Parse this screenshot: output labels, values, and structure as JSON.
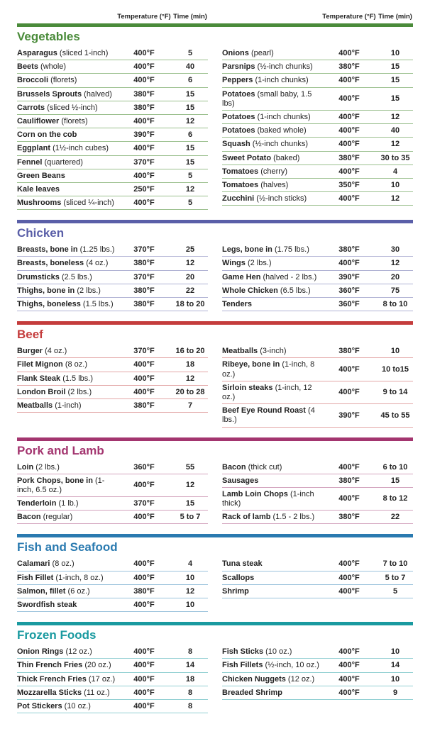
{
  "headers": {
    "temp": "Temperature (°F)",
    "time": "Time (min)"
  },
  "sections": [
    {
      "title": "Vegetables",
      "title_color": "#4a8b3a",
      "bar_color": "#4a8b3a",
      "row_border": "#9bc08e",
      "left": [
        {
          "name": "Asparagus",
          "det": " (sliced 1-inch)",
          "temp": "400°F",
          "time": "5"
        },
        {
          "name": "Beets",
          "det": " (whole)",
          "temp": "400°F",
          "time": "40"
        },
        {
          "name": "Broccoli",
          "det": " (florets)",
          "temp": "400°F",
          "time": "6"
        },
        {
          "name": "Brussels Sprouts",
          "det": " (halved)",
          "temp": "380°F",
          "time": "15"
        },
        {
          "name": "Carrots",
          "det": " (sliced ½-inch)",
          "temp": "380°F",
          "time": "15"
        },
        {
          "name": "Cauliflower",
          "det": " (florets)",
          "temp": "400°F",
          "time": "12"
        },
        {
          "name": "Corn on the cob",
          "det": "",
          "temp": "390°F",
          "time": "6"
        },
        {
          "name": "Eggplant",
          "det": " (1½-inch cubes)",
          "temp": "400°F",
          "time": "15"
        },
        {
          "name": "Fennel",
          "det": " (quartered)",
          "temp": "370°F",
          "time": "15"
        },
        {
          "name": "Green Beans",
          "det": "",
          "temp": "400°F",
          "time": "5"
        },
        {
          "name": "Kale leaves",
          "det": "",
          "temp": "250°F",
          "time": "12"
        },
        {
          "name": "Mushrooms",
          "det": " (sliced ¼-inch)",
          "temp": "400°F",
          "time": "5"
        }
      ],
      "right": [
        {
          "name": "Onions",
          "det": " (pearl)",
          "temp": "400°F",
          "time": "10"
        },
        {
          "name": "Parsnips",
          "det": " (½-inch chunks)",
          "temp": "380°F",
          "time": "15"
        },
        {
          "name": "Peppers",
          "det": " (1-inch chunks)",
          "temp": "400°F",
          "time": "15"
        },
        {
          "name": "Potatoes",
          "det": " (small baby, 1.5 lbs)",
          "temp": "400°F",
          "time": "15"
        },
        {
          "name": "Potatoes",
          "det": " (1-inch chunks)",
          "temp": "400°F",
          "time": "12"
        },
        {
          "name": "Potatoes",
          "det": " (baked whole)",
          "temp": "400°F",
          "time": "40"
        },
        {
          "name": "Squash",
          "det": " (½-inch chunks)",
          "temp": "400°F",
          "time": "12"
        },
        {
          "name": "Sweet Potato",
          "det": " (baked)",
          "temp": "380°F",
          "time": "30 to 35"
        },
        {
          "name": "Tomatoes",
          "det": " (cherry)",
          "temp": "400°F",
          "time": "4"
        },
        {
          "name": "Tomatoes",
          "det": " (halves)",
          "temp": "350°F",
          "time": "10"
        },
        {
          "name": "Zucchini",
          "det": " (½-inch sticks)",
          "temp": "400°F",
          "time": "12"
        }
      ]
    },
    {
      "title": "Chicken",
      "title_color": "#5a5fa8",
      "bar_color": "#5a5fa8",
      "row_border": "#b0b2d4",
      "left": [
        {
          "name": "Breasts, bone in",
          "det": " (1.25 lbs.)",
          "temp": "370°F",
          "time": "25"
        },
        {
          "name": "Breasts, boneless",
          "det": "  (4 oz.)",
          "temp": "380°F",
          "time": "12"
        },
        {
          "name": "Drumsticks",
          "det": " (2.5 lbs.)",
          "temp": "370°F",
          "time": "20"
        },
        {
          "name": "Thighs, bone in",
          "det": "  (2 lbs.)",
          "temp": "380°F",
          "time": "22"
        },
        {
          "name": "Thighs, boneless",
          "det": " (1.5 lbs.)",
          "temp": "380°F",
          "time": "18 to 20"
        }
      ],
      "right": [
        {
          "name": "Legs, bone in",
          "det": "  (1.75 lbs.)",
          "temp": "380°F",
          "time": "30"
        },
        {
          "name": "Wings",
          "det": "  (2 lbs.)",
          "temp": "400°F",
          "time": "12"
        },
        {
          "name": "Game Hen",
          "det": " (halved - 2 lbs.)",
          "temp": "390°F",
          "time": "20"
        },
        {
          "name": "Whole Chicken",
          "det": " (6.5 lbs.)",
          "temp": "360°F",
          "time": "75"
        },
        {
          "name": "Tenders",
          "det": "",
          "temp": "360°F",
          "time": "8 to 10"
        }
      ]
    },
    {
      "title": "Beef",
      "title_color": "#c43c3c",
      "bar_color": "#c43c3c",
      "row_border": "#e3a7a7",
      "left": [
        {
          "name": "Burger",
          "det": "  (4 oz.)",
          "temp": "370°F",
          "time": "16 to 20"
        },
        {
          "name": "Filet Mignon",
          "det": " (8 oz.)",
          "temp": "400°F",
          "time": "18"
        },
        {
          "name": "Flank Steak",
          "det": "  (1.5 lbs.)",
          "temp": "400°F",
          "time": "12"
        },
        {
          "name": "London Broil",
          "det": "  (2 lbs.)",
          "temp": "400°F",
          "time": "20 to 28"
        },
        {
          "name": "Meatballs",
          "det": " (1-inch)",
          "temp": "380°F",
          "time": "7"
        }
      ],
      "right": [
        {
          "name": "Meatballs",
          "det": " (3-inch)",
          "temp": "380°F",
          "time": "10"
        },
        {
          "name": "Ribeye, bone in",
          "det": " (1-inch, 8 oz.)",
          "temp": "400°F",
          "time": "10 to15"
        },
        {
          "name": "Sirloin steaks",
          "det": " (1-inch, 12 oz.)",
          "temp": "400°F",
          "time": "9 to 14"
        },
        {
          "name": "Beef Eye Round Roast",
          "det": " (4 lbs.)",
          "temp": "390°F",
          "time": "45 to 55"
        }
      ]
    },
    {
      "title": "Pork and Lamb",
      "title_color": "#a3356f",
      "bar_color": "#a3356f",
      "row_border": "#d4a5bf",
      "left": [
        {
          "name": "Loin",
          "det": " (2 lbs.)",
          "temp": "360°F",
          "time": "55"
        },
        {
          "name": "Pork Chops, bone in",
          "det": " (1-inch, 6.5 oz.)",
          "temp": "400°F",
          "time": "12"
        },
        {
          "name": "Tenderloin",
          "det": " (1 lb.)",
          "temp": "370°F",
          "time": "15"
        },
        {
          "name": "Bacon",
          "det": " (regular)",
          "temp": "400°F",
          "time": "5 to 7"
        }
      ],
      "right": [
        {
          "name": "Bacon",
          "det": " (thick cut)",
          "temp": "400°F",
          "time": "6 to 10"
        },
        {
          "name": "Sausages",
          "det": "",
          "temp": "380°F",
          "time": "15"
        },
        {
          "name": "Lamb Loin Chops",
          "det": " (1-inch thick)",
          "temp": "400°F",
          "time": "8 to 12"
        },
        {
          "name": "Rack of lamb",
          "det": " (1.5 - 2 lbs.)",
          "temp": "380°F",
          "time": "22"
        }
      ]
    },
    {
      "title": "Fish and Seafood",
      "title_color": "#2a7ab0",
      "bar_color": "#2a7ab0",
      "row_border": "#9cc3dc",
      "left": [
        {
          "name": "Calamari",
          "det": " (8 oz.)",
          "temp": "400°F",
          "time": "4"
        },
        {
          "name": "Fish Fillet",
          "det": " (1-inch, 8 oz.)",
          "temp": "400°F",
          "time": "10"
        },
        {
          "name": "Salmon, fillet",
          "det": "  (6 oz.)",
          "temp": "380°F",
          "time": "12"
        },
        {
          "name": "Swordfish steak",
          "det": "",
          "temp": "400°F",
          "time": "10"
        }
      ],
      "right": [
        {
          "name": "Tuna steak",
          "det": "",
          "temp": "400°F",
          "time": "7 to 10"
        },
        {
          "name": "Scallops",
          "det": "",
          "temp": "400°F",
          "time": "5 to 7"
        },
        {
          "name": "Shrimp",
          "det": "",
          "temp": "400°F",
          "time": "5"
        }
      ]
    },
    {
      "title": "Frozen Foods",
      "title_color": "#1a9aa0",
      "bar_color": "#1a9aa0",
      "row_border": "#93d0d3",
      "left": [
        {
          "name": "Onion Rings",
          "det": "  (12 oz.)",
          "temp": "400°F",
          "time": "8"
        },
        {
          "name": "Thin French Fries",
          "det": "  (20 oz.)",
          "temp": "400°F",
          "time": "14"
        },
        {
          "name": "Thick French Fries",
          "det": " (17 oz.)",
          "temp": "400°F",
          "time": "18"
        },
        {
          "name": "Mozzarella Sticks",
          "det": " (11 oz.)",
          "temp": "400°F",
          "time": "8"
        },
        {
          "name": "Pot Stickers",
          "det": " (10 oz.)",
          "temp": "400°F",
          "time": "8"
        }
      ],
      "right": [
        {
          "name": "Fish Sticks",
          "det": " (10 oz.)",
          "temp": "400°F",
          "time": "10"
        },
        {
          "name": "Fish Fillets",
          "det": " (½-inch, 10 oz.)",
          "temp": "400°F",
          "time": "14"
        },
        {
          "name": "Chicken Nuggets",
          "det": " (12 oz.)",
          "temp": "400°F",
          "time": "10"
        },
        {
          "name": "Breaded Shrimp",
          "det": "",
          "temp": "400°F",
          "time": "9"
        }
      ]
    }
  ]
}
